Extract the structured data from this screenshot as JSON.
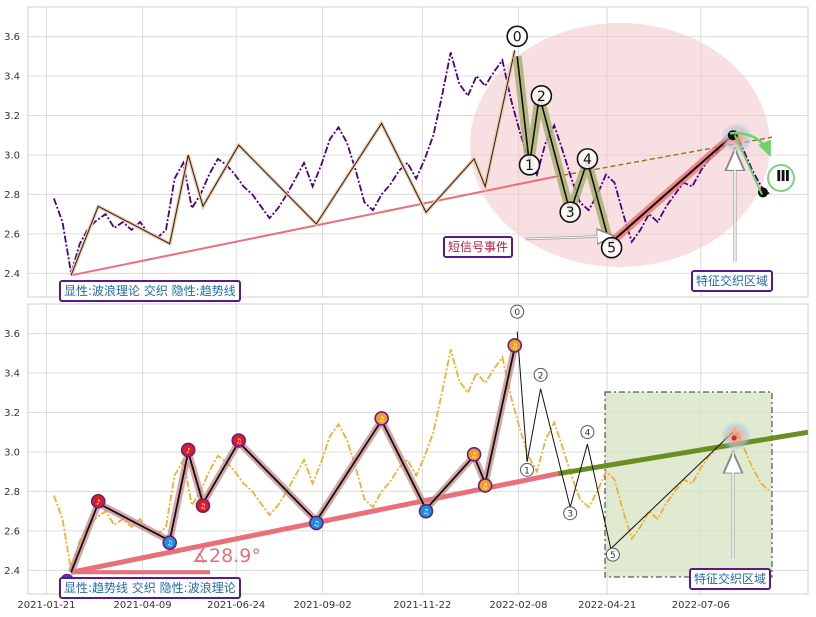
{
  "chart_data": [
    {
      "type": "line",
      "panel": "top",
      "ylim": [
        2.28,
        3.75
      ],
      "yticks": [
        "3.6",
        "3.4",
        "3.2",
        "3.0",
        "2.8",
        "2.6",
        "2.4"
      ],
      "grid": true,
      "series": [
        {
          "name": "",
          "style": "dash-dot",
          "color": "#4b0082",
          "x": [
            "2021-01-27",
            "2021-02-03",
            "2021-02-10",
            "2021-02-17",
            "2021-02-24",
            "2021-03-03",
            "2021-03-10",
            "2021-03-17",
            "2021-03-24",
            "2021-03-31",
            "2021-04-07",
            "2021-04-14",
            "2021-04-21",
            "2021-04-28",
            "2021-05-05",
            "2021-05-12",
            "2021-05-19",
            "2021-05-26",
            "2021-06-02",
            "2021-06-09",
            "2021-06-16",
            "2021-06-23",
            "2021-06-30",
            "2021-07-07",
            "2021-07-14",
            "2021-07-21",
            "2021-07-28",
            "2021-08-04",
            "2021-08-11",
            "2021-08-18",
            "2021-08-25",
            "2021-09-01",
            "2021-09-08",
            "2021-09-15",
            "2021-09-22",
            "2021-09-29",
            "2021-10-06",
            "2021-10-13",
            "2021-10-20",
            "2021-10-27",
            "2021-11-03",
            "2021-11-10",
            "2021-11-17",
            "2021-11-24",
            "2021-12-01",
            "2021-12-08",
            "2021-12-15",
            "2021-12-22",
            "2021-12-29",
            "2022-01-05",
            "2022-01-12",
            "2022-01-19",
            "2022-01-26",
            "2022-02-02",
            "2022-02-09",
            "2022-02-16",
            "2022-02-23",
            "2022-03-02",
            "2022-03-09",
            "2022-03-16",
            "2022-03-23",
            "2022-03-30",
            "2022-04-06",
            "2022-04-13",
            "2022-04-20",
            "2022-04-27",
            "2022-05-04",
            "2022-05-11",
            "2022-05-18",
            "2022-05-25",
            "2022-06-01",
            "2022-06-08",
            "2022-06-15",
            "2022-06-22",
            "2022-06-29",
            "2022-07-06",
            "2022-07-13",
            "2022-07-20",
            "2022-07-27",
            "2022-08-03",
            "2022-08-10",
            "2022-08-17",
            "2022-08-24",
            "2022-08-31"
          ],
          "values": [
            2.78,
            2.66,
            2.4,
            2.55,
            2.63,
            2.67,
            2.7,
            2.63,
            2.66,
            2.62,
            2.66,
            2.6,
            2.58,
            2.62,
            2.88,
            2.96,
            2.73,
            2.8,
            2.9,
            2.98,
            2.95,
            2.9,
            2.84,
            2.8,
            2.74,
            2.68,
            2.73,
            2.8,
            2.88,
            2.96,
            2.84,
            2.95,
            3.08,
            3.14,
            3.06,
            2.92,
            2.76,
            2.72,
            2.8,
            2.85,
            2.92,
            2.96,
            2.88,
            2.98,
            3.1,
            3.3,
            3.52,
            3.36,
            3.3,
            3.4,
            3.35,
            3.42,
            3.48,
            3.28,
            3.12,
            2.98,
            2.9,
            3.06,
            3.15,
            3.02,
            2.88,
            2.76,
            2.72,
            2.8,
            2.9,
            2.86,
            2.7,
            2.56,
            2.62,
            2.7,
            2.66,
            2.74,
            2.8,
            2.86,
            2.84,
            2.92,
            2.98,
            3.02,
            3.08,
            3.12,
            3.02,
            2.92,
            2.84,
            2.8
          ]
        }
      ],
      "wave_points": [
        {
          "x": "2021-02-10",
          "y": 2.39
        },
        {
          "x": "2021-03-04",
          "y": 2.74
        },
        {
          "x": "2021-05-01",
          "y": 2.55
        },
        {
          "x": "2021-05-16",
          "y": 3.0
        },
        {
          "x": "2021-05-28",
          "y": 2.74
        },
        {
          "x": "2021-06-26",
          "y": 3.05
        },
        {
          "x": "2021-08-28",
          "y": 2.65
        },
        {
          "x": "2021-10-20",
          "y": 3.16
        },
        {
          "x": "2021-11-25",
          "y": 2.71
        },
        {
          "x": "2022-01-03",
          "y": 2.98
        },
        {
          "x": "2022-01-12",
          "y": 2.84
        },
        {
          "x": "2022-02-05",
          "y": 3.53
        }
      ],
      "elliott_points": [
        {
          "label": "0",
          "x": "2022-02-07",
          "y": 3.5
        },
        {
          "label": "1",
          "x": "2022-02-17",
          "y": 2.95
        },
        {
          "label": "2",
          "x": "2022-02-25",
          "y": 3.3
        },
        {
          "label": "3",
          "x": "2022-03-22",
          "y": 2.71
        },
        {
          "label": "4",
          "x": "2022-04-05",
          "y": 2.97
        },
        {
          "label": "5",
          "x": "2022-04-23",
          "y": 2.55
        }
      ],
      "projection_label": "Ⅲ",
      "annotations": [
        "短信号事件",
        "特征交织区域",
        "显性:波浪理论 交织 隐性:趋势线"
      ]
    },
    {
      "type": "line",
      "panel": "bottom",
      "ylim": [
        2.28,
        3.75
      ],
      "yticks": [
        "3.6",
        "3.4",
        "3.2",
        "3.0",
        "2.8",
        "2.6",
        "2.4"
      ],
      "xticks": [
        "2021-01-21",
        "2021-04-09",
        "2021-06-24",
        "2021-09-02",
        "2021-11-22",
        "2022-02-08",
        "2022-04-21",
        "2022-07-06"
      ],
      "grid": true,
      "series": [
        {
          "name": "",
          "style": "dash-dot",
          "color": "#f0b030",
          "same_values_as": "top"
        }
      ],
      "angle_label": "∡28.9°",
      "elliott_points": [
        {
          "label": "0",
          "x": "2022-02-07",
          "y": 3.61
        },
        {
          "label": "1",
          "x": "2022-02-15",
          "y": 2.95
        },
        {
          "label": "2",
          "x": "2022-02-26",
          "y": 3.32
        },
        {
          "label": "3",
          "x": "2022-03-22",
          "y": 2.72
        },
        {
          "label": "4",
          "x": "2022-04-05",
          "y": 3.04
        },
        {
          "label": "5",
          "x": "2022-04-24",
          "y": 2.51
        }
      ],
      "annotations": [
        "特征交织区域",
        "显性:趋势线 交织 隐性:波浪理论"
      ]
    }
  ],
  "colors": {
    "purple_line": "#4b0082",
    "gold_line": "#f0b030",
    "trend_pink": "#e8707a",
    "olive": "#6b8e23",
    "label_border": "#5b1a8c",
    "label_text_blue": "#1f6ba8",
    "label_text_red": "#b0203a"
  },
  "labels": {
    "top_box": "显性:波浪理论 交织 隐性:趋势线",
    "bottom_box": "显性:趋势线 交织 隐性:波浪理论",
    "short_signal": "短信号事件",
    "zone_top": "特征交织区域",
    "zone_bottom": "特征交织区域",
    "angle": "∡28.9°",
    "roman": "Ⅲ"
  }
}
